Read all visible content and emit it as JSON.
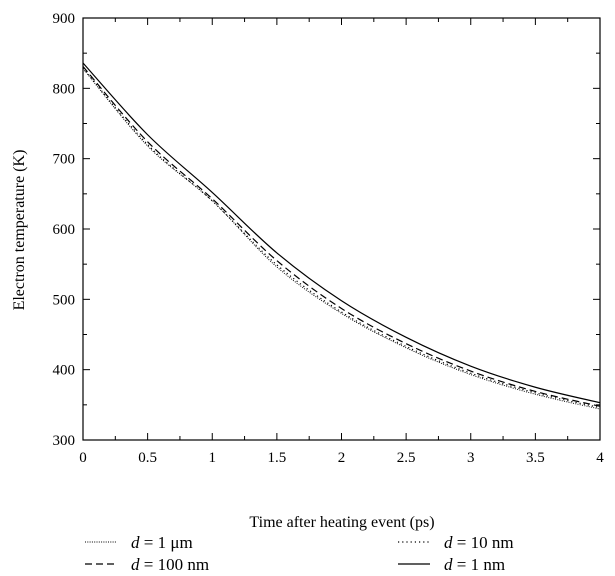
{
  "chart_data": {
    "type": "line",
    "title": "",
    "xlabel": "Time after heating event (ps)",
    "ylabel": "Electron temperature (K)",
    "xlim": [
      0,
      4
    ],
    "ylim": [
      300,
      900
    ],
    "x_ticks": [
      "0",
      "0.5",
      "1",
      "1.5",
      "2",
      "2.5",
      "3",
      "3.5",
      "4"
    ],
    "y_ticks": [
      "300",
      "400",
      "500",
      "600",
      "700",
      "800",
      "900"
    ],
    "grid": false,
    "legend_position": "bottom",
    "x": [
      0,
      0.5,
      1,
      1.5,
      2,
      2.5,
      3,
      3.5,
      4
    ],
    "series": [
      {
        "name_var": "d",
        "name_value": " = 1 ",
        "name_unit": "μm",
        "style": "fine-dotted",
        "values": [
          828,
          718,
          640,
          546,
          480,
          431,
          393,
          365,
          344
        ]
      },
      {
        "name_var": "d",
        "name_value": " = 10 nm",
        "name_unit": "",
        "style": "dotted",
        "values": [
          829,
          720,
          640,
          549,
          482,
          433,
          395,
          367,
          346
        ]
      },
      {
        "name_var": "d",
        "name_value": " = 100 nm",
        "name_unit": "",
        "style": "dashed",
        "values": [
          831,
          724,
          643,
          555,
          487,
          437,
          398,
          369,
          348
        ]
      },
      {
        "name_var": "d",
        "name_value": " = 1 nm",
        "name_unit": "",
        "style": "solid",
        "values": [
          836,
          734,
          652,
          566,
          498,
          446,
          405,
          375,
          353
        ]
      }
    ],
    "legend_order": [
      0,
      1,
      2,
      3
    ]
  }
}
